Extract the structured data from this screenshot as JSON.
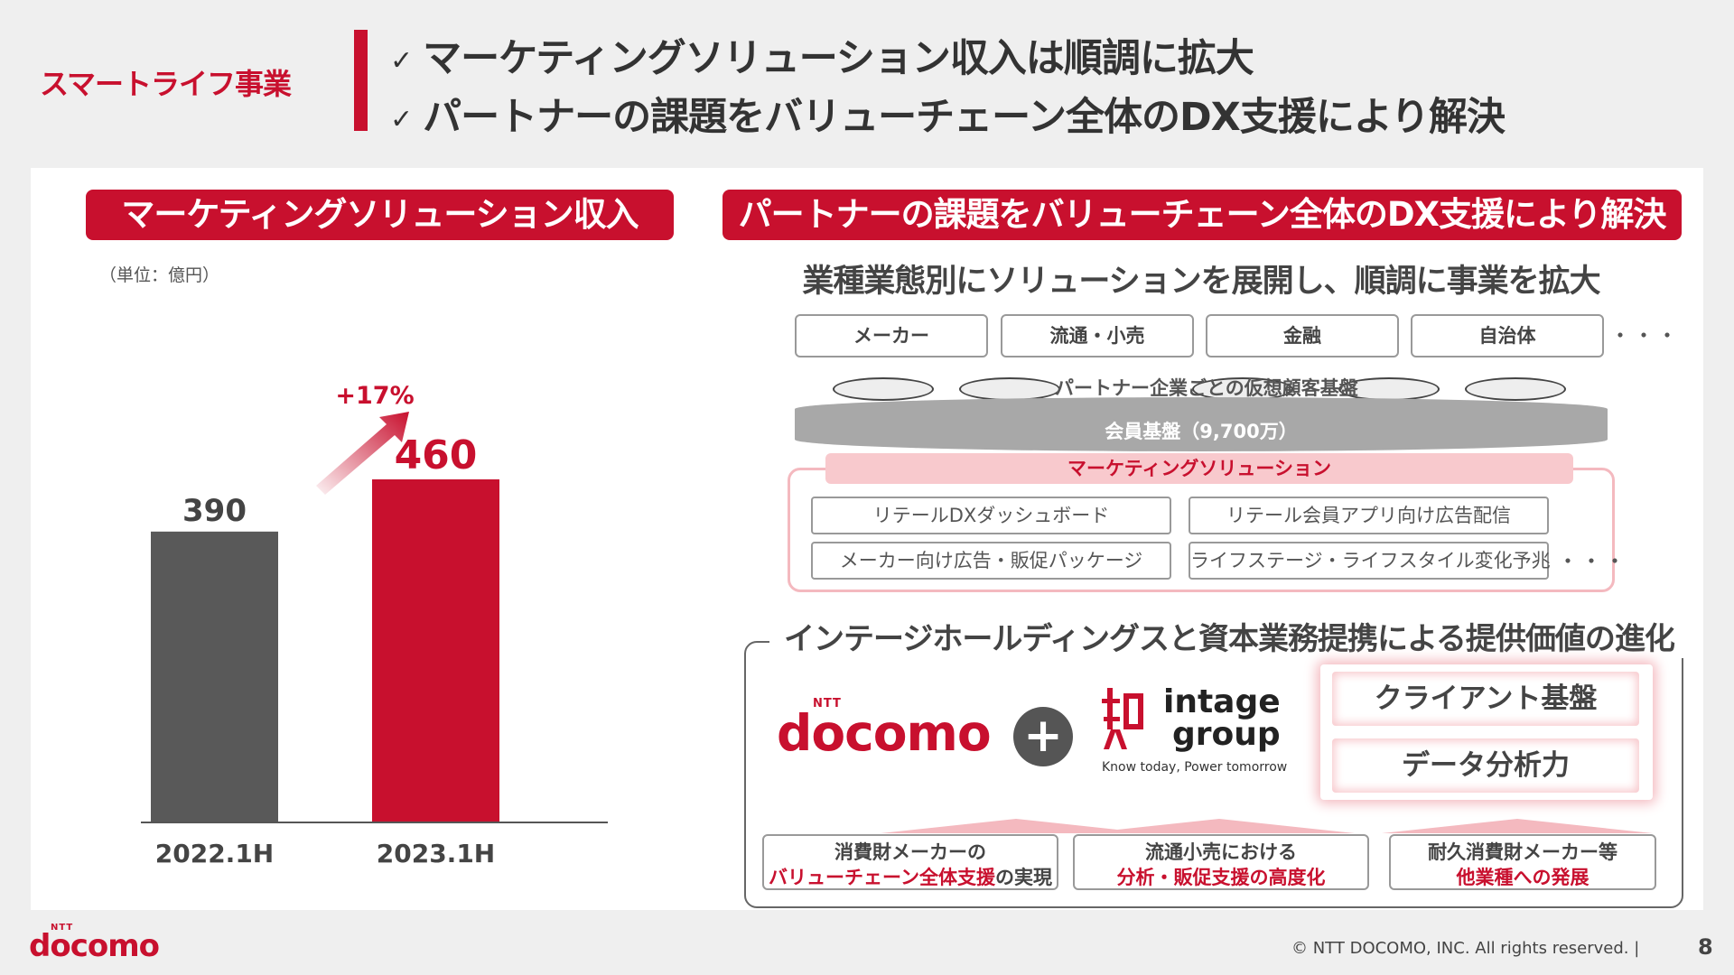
{
  "header": {
    "section_label": "スマートライフ事業",
    "check_icon": "✓",
    "lines": [
      "マーケティングソリューション収入は順調に拡大",
      "パートナーの課題をバリューチェーン全体のDX支援により解決"
    ]
  },
  "left": {
    "ribbon": "マーケティングソリューション収入",
    "unit": "（単位：億円）",
    "growth_label": "+17%"
  },
  "chart_data": {
    "type": "bar",
    "categories": [
      "2022.1H",
      "2023.1H"
    ],
    "values": [
      390,
      460
    ],
    "colors": [
      "#595959",
      "#c8102e"
    ],
    "annotations": [
      "+17%"
    ],
    "ylim": [
      0,
      520
    ],
    "title": "マーケティングソリューション収入",
    "unit": "（単位：億円）"
  },
  "right": {
    "ribbon": "パートナーの課題をバリューチェーン全体のDX支援により解決",
    "headline": "業種業態別にソリューションを展開し、順調に事業を拡大",
    "industries": [
      "メーカー",
      "流通・小売",
      "金融",
      "自治体"
    ],
    "ellipsis": "・・・",
    "partner_db": "パートナー企業ごとの仮想顧客基盤",
    "member_base": "会員基盤（9,700万）",
    "marketing_tab": "マーケティングソリューション",
    "solutions": [
      "リテールDXダッシュボード",
      "リテール会員アプリ向け広告配信",
      "メーカー向け広告・販促パッケージ",
      "ライフステージ・ライフスタイル変化予兆"
    ]
  },
  "intage": {
    "headline": "インテージホールディングスと資本業務提携による提供価値の進化",
    "docomo_logo": "docomo",
    "docomo_ntt": "NTT",
    "plus": "+",
    "intage_line1": "intage",
    "intage_line2": "group",
    "intage_tagline": "Know today, Power tomorrow",
    "client_items": [
      "クライアント基盤",
      "データ分析力"
    ],
    "values": [
      {
        "line1": "消費財メーカーの",
        "em": "バリューチェーン全体支援",
        "rest": "の実現"
      },
      {
        "line1": "流通小売における",
        "em": "分析・販促支援の高度化",
        "rest": ""
      },
      {
        "line1": "耐久消費財メーカー等",
        "em": "他業種への発展",
        "rest": ""
      }
    ]
  },
  "footer": {
    "logo": "docomo",
    "logo_ntt": "NTT",
    "copyright": "© NTT DOCOMO, INC.   All rights reserved.  |",
    "page_number": "8"
  },
  "colors": {
    "accent": "#c8102e",
    "bar_2022": "#595959",
    "pink": "#f4b9bf"
  }
}
